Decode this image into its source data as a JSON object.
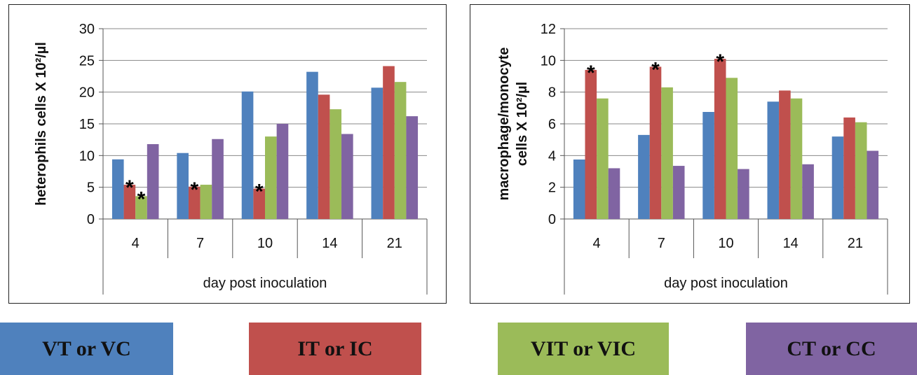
{
  "legend": [
    {
      "label": "VT or VC",
      "color": "#4F81BD"
    },
    {
      "label": "IT or IC",
      "color": "#C0504D"
    },
    {
      "label": "VIT or VIC",
      "color": "#9BBB59"
    },
    {
      "label": "CT or CC",
      "color": "#8064A2"
    }
  ],
  "chart_data": [
    {
      "type": "bar",
      "categories": [
        "4",
        "7",
        "10",
        "14",
        "21"
      ],
      "xlabel": "day post inoculation",
      "ylabel": "heterophils cells X 10²/µl",
      "ylim": [
        0,
        30
      ],
      "yticks": [
        0,
        5,
        10,
        15,
        20,
        25,
        30
      ],
      "grid": true,
      "series": [
        {
          "name": "VT or VC",
          "color": "#4F81BD",
          "values": [
            9.4,
            10.4,
            20.1,
            23.2,
            20.7
          ]
        },
        {
          "name": "IT or IC",
          "color": "#C0504D",
          "values": [
            5.4,
            5.1,
            4.8,
            19.6,
            24.1
          ]
        },
        {
          "name": "VIT or VIC",
          "color": "#9BBB59",
          "values": [
            3.6,
            5.4,
            13.0,
            17.3,
            21.6
          ]
        },
        {
          "name": "CT or CC",
          "color": "#8064A2",
          "values": [
            11.8,
            12.6,
            15.0,
            13.4,
            16.2
          ]
        }
      ],
      "annotations": [
        {
          "text": "*",
          "category": "4",
          "series": "IT or IC"
        },
        {
          "text": "*",
          "category": "4",
          "series": "VIT or VIC"
        },
        {
          "text": "*",
          "category": "7",
          "series": "IT or IC"
        },
        {
          "text": "*",
          "category": "10",
          "series": "IT or IC"
        }
      ]
    },
    {
      "type": "bar",
      "categories": [
        "4",
        "7",
        "10",
        "14",
        "21"
      ],
      "xlabel": "day post inoculation",
      "ylabel": [
        "macrophage/monocyte",
        "cells X 10²/µl"
      ],
      "ylim": [
        0,
        12
      ],
      "yticks": [
        0,
        2,
        4,
        6,
        8,
        10,
        12
      ],
      "grid": true,
      "series": [
        {
          "name": "VT or VC",
          "color": "#4F81BD",
          "values": [
            3.75,
            5.3,
            6.75,
            7.4,
            5.2
          ]
        },
        {
          "name": "IT or IC",
          "color": "#C0504D",
          "values": [
            9.4,
            9.6,
            10.1,
            8.1,
            6.4
          ]
        },
        {
          "name": "VIT or VIC",
          "color": "#9BBB59",
          "values": [
            7.6,
            8.3,
            8.9,
            7.6,
            6.1
          ]
        },
        {
          "name": "CT or CC",
          "color": "#8064A2",
          "values": [
            3.2,
            3.35,
            3.15,
            3.45,
            4.3
          ]
        }
      ],
      "annotations": [
        {
          "text": "*",
          "category": "4",
          "series": "IT or IC"
        },
        {
          "text": "*",
          "category": "7",
          "series": "IT or IC"
        },
        {
          "text": "*",
          "category": "10",
          "series": "IT or IC"
        }
      ]
    }
  ]
}
